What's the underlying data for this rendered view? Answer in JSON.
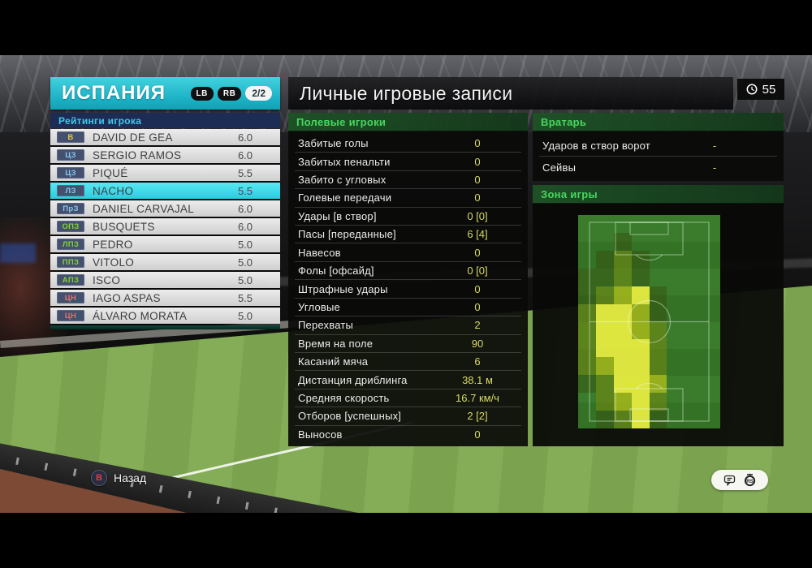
{
  "window": {
    "clock_value": "55"
  },
  "team_panel": {
    "team_name": "ИСПАНИЯ",
    "prev_key": "LB",
    "next_key": "RB",
    "page_indicator": "2/2",
    "list_title": "Рейтинги игрока",
    "players": [
      {
        "pos": "В",
        "pos_color": "#e3cd43",
        "name": "DAVID DE GEA",
        "rating": "6.0",
        "selected": false
      },
      {
        "pos": "ЦЗ",
        "pos_color": "#84c6ec",
        "name": "SERGIO RAMOS",
        "rating": "6.0",
        "selected": false
      },
      {
        "pos": "ЦЗ",
        "pos_color": "#84c6ec",
        "name": "PIQUÉ",
        "rating": "5.5",
        "selected": false
      },
      {
        "pos": "ЛЗ",
        "pos_color": "#84c6ec",
        "name": "NACHO",
        "rating": "5.5",
        "selected": true
      },
      {
        "pos": "ПрЗ",
        "pos_color": "#84c6ec",
        "name": "DANIEL CARVAJAL",
        "rating": "6.0",
        "selected": false
      },
      {
        "pos": "ОПЗ",
        "pos_color": "#7fd438",
        "name": "BUSQUETS",
        "rating": "6.0",
        "selected": false
      },
      {
        "pos": "ЛПЗ",
        "pos_color": "#7fd438",
        "name": "PEDRO",
        "rating": "5.0",
        "selected": false
      },
      {
        "pos": "ППЗ",
        "pos_color": "#7fd438",
        "name": "VITOLO",
        "rating": "5.0",
        "selected": false
      },
      {
        "pos": "АПЗ",
        "pos_color": "#7fd438",
        "name": "ISCO",
        "rating": "5.0",
        "selected": false
      },
      {
        "pos": "ЦН",
        "pos_color": "#ef6a6a",
        "name": "IAGO ASPAS",
        "rating": "5.5",
        "selected": false
      },
      {
        "pos": "ЦН",
        "pos_color": "#ef6a6a",
        "name": "ÁLVARO MORATA",
        "rating": "5.0",
        "selected": false
      }
    ]
  },
  "title_bar": {
    "title": "Личные игровые записи"
  },
  "field_player_stats": {
    "header": "Полевые игроки",
    "rows": [
      {
        "label": "Забитые голы",
        "value": "0"
      },
      {
        "label": "Забитых пенальти",
        "value": "0"
      },
      {
        "label": "Забито с угловых",
        "value": "0"
      },
      {
        "label": "Голевые передачи",
        "value": "0"
      },
      {
        "label": "Удары [в створ]",
        "value": "0 [0]"
      },
      {
        "label": "Пасы [переданные]",
        "value": "6 [4]"
      },
      {
        "label": "Навесов",
        "value": "0"
      },
      {
        "label": "Фолы [офсайд]",
        "value": "0 [0]"
      },
      {
        "label": "Штрафные удары",
        "value": "0"
      },
      {
        "label": "Угловые",
        "value": "0"
      },
      {
        "label": "Перехваты",
        "value": "2"
      },
      {
        "label": "Время на поле",
        "value": "90"
      },
      {
        "label": "Касаний мяча",
        "value": "6"
      },
      {
        "label": "Дистанция дриблинга",
        "value": "38.1 м"
      },
      {
        "label": "Средняя скорость",
        "value": "16.7 км/ч"
      },
      {
        "label": "Отборов [успешных]",
        "value": "2 [2]"
      },
      {
        "label": "Выносов",
        "value": "0"
      }
    ]
  },
  "goalkeeper_stats": {
    "header": "Вратарь",
    "rows": [
      {
        "label": "Ударов в створ ворот",
        "value": "-"
      },
      {
        "label": "Сейвы",
        "value": "-"
      }
    ]
  },
  "zone_panel": {
    "header": "Зона игры",
    "heatmap": {
      "columns": 8,
      "rows": 12,
      "palette": {
        "0": "transparent",
        "1": "rgba(55,70,8,0.40)",
        "2": "rgba(120,138,16,0.55)",
        "3": "rgba(172,188,26,0.80)",
        "4": "rgba(226,232,64,0.97)"
      },
      "cells": [
        [
          0,
          0,
          0,
          0,
          0,
          0,
          0,
          0
        ],
        [
          0,
          0,
          1,
          0,
          0,
          0,
          0,
          0
        ],
        [
          0,
          1,
          2,
          1,
          0,
          0,
          0,
          0
        ],
        [
          1,
          1,
          2,
          1,
          0,
          0,
          0,
          0
        ],
        [
          1,
          2,
          3,
          4,
          1,
          0,
          0,
          0
        ],
        [
          2,
          4,
          4,
          3,
          1,
          0,
          0,
          0
        ],
        [
          2,
          4,
          4,
          3,
          2,
          0,
          0,
          0
        ],
        [
          2,
          4,
          4,
          4,
          2,
          0,
          0,
          0
        ],
        [
          2,
          3,
          4,
          4,
          2,
          0,
          0,
          0
        ],
        [
          1,
          2,
          4,
          4,
          3,
          0,
          0,
          0
        ],
        [
          0,
          2,
          3,
          4,
          2,
          0,
          0,
          0
        ],
        [
          0,
          1,
          2,
          4,
          1,
          0,
          0,
          0
        ]
      ]
    }
  },
  "footer": {
    "back_key": "B",
    "back_label": "Назад",
    "stick_icon_label": "RS"
  },
  "colors": {
    "accent_cyan": "#2ec8da",
    "selected_row": "#40dcea",
    "stat_value_yellow": "#d9d964",
    "header_green": "#46d75e",
    "ratings_bar_navy": "#1d2c55"
  }
}
